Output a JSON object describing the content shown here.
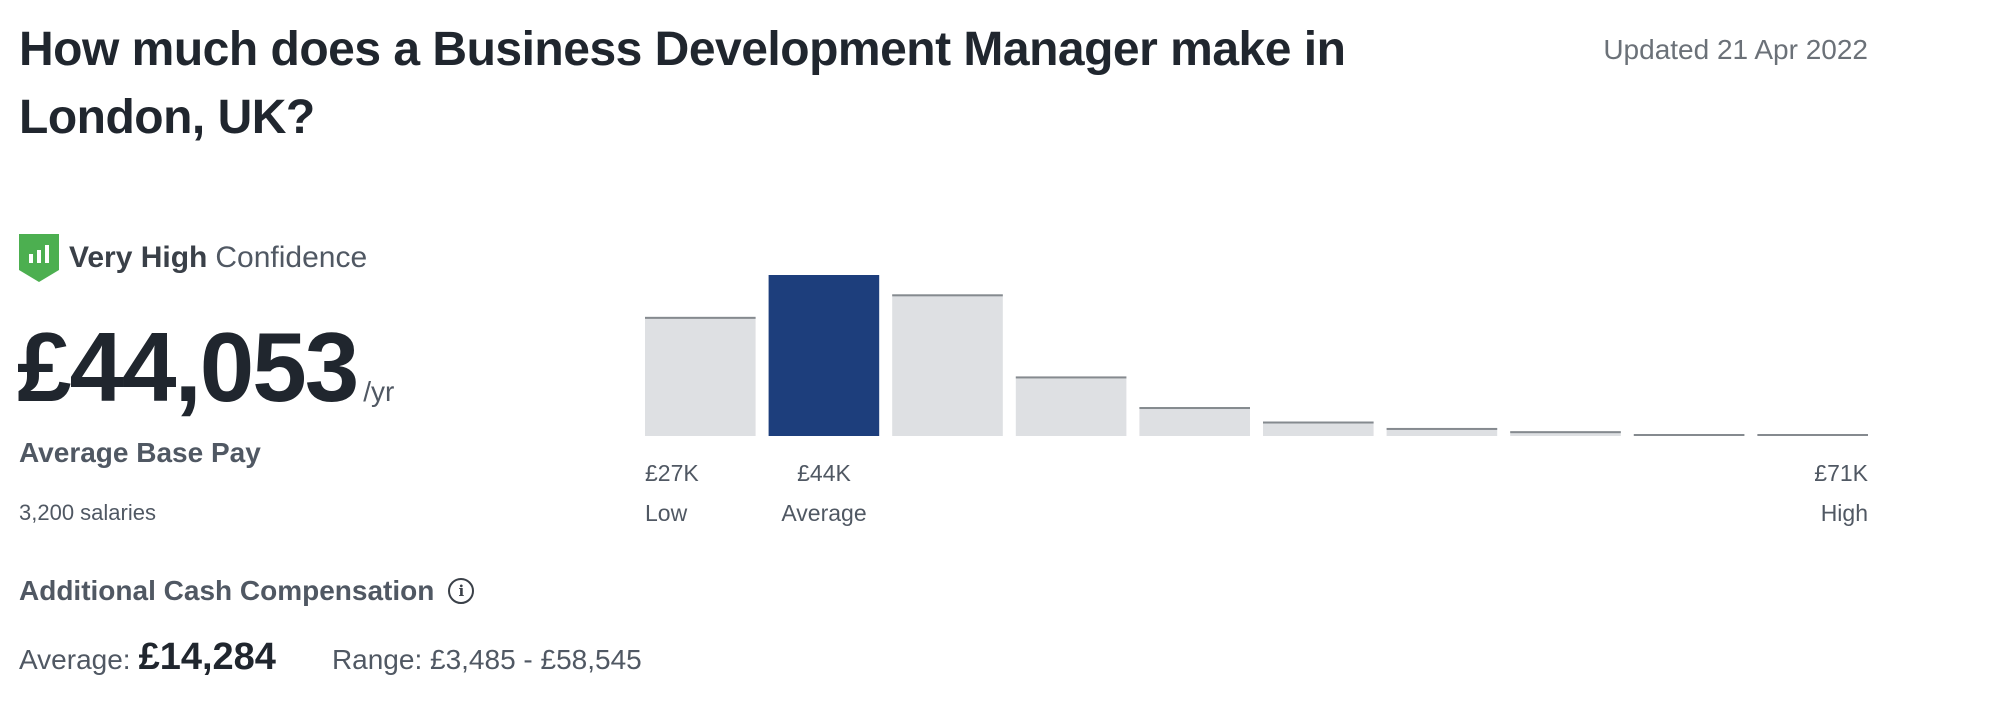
{
  "header": {
    "title": "How much does a Business Development Manager make in London, UK?",
    "updated": "Updated 21 Apr 2022"
  },
  "confidence": {
    "level": "Very High",
    "suffix": "Confidence",
    "icon": "shield-chart-icon",
    "color": "#4caf50"
  },
  "pay": {
    "amount": "£44,053",
    "period": "/yr",
    "label": "Average Base Pay",
    "count": "3,200 salaries"
  },
  "additional": {
    "title": "Additional Cash Compensation",
    "avg_label": "Average:",
    "avg_value": "£14,284",
    "range": "Range: £3,485 - £58,545"
  },
  "chart_data": {
    "type": "bar",
    "title": "",
    "values": [
      74,
      100,
      88,
      37,
      18,
      9,
      5,
      3,
      1,
      1
    ],
    "highlight_index": 1,
    "ylim": [
      0,
      100
    ],
    "labels": {
      "low_value": "£27K",
      "low": "Low",
      "avg_value": "£44K",
      "avg": "Average",
      "high_value": "£71K",
      "high": "High"
    },
    "colors": {
      "bar": "#dee0e3",
      "bar_top": "#858a8f",
      "highlight": "#1d3e7c"
    }
  }
}
